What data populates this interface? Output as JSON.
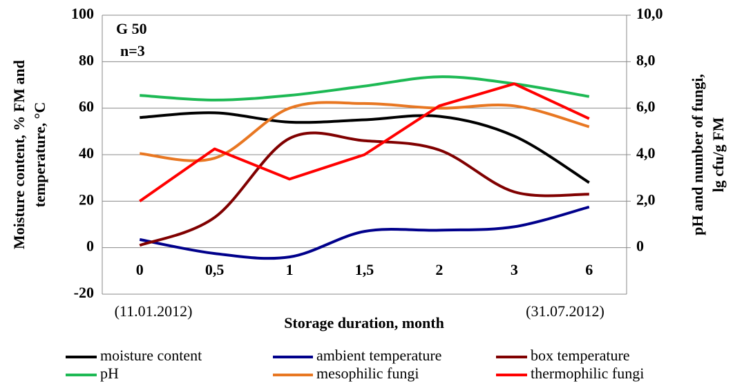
{
  "chart_data": {
    "type": "line",
    "xlabel": "Storage duration, month",
    "ylabel": [
      "Moisture content, % FM and",
      "temperature, °C"
    ],
    "y2label": [
      "pH and number of fungi,",
      "lg cfu/g FM"
    ],
    "annotations": [
      "G 50",
      "n=3",
      "(11.01.2012)",
      "(31.07.2012)"
    ],
    "categories": [
      "0",
      "0,5",
      "1",
      "1,5",
      "2",
      "3",
      "6"
    ],
    "ylim": [
      -20,
      100
    ],
    "yticks": [
      -20,
      0,
      20,
      40,
      60,
      80,
      100
    ],
    "y2lim": [
      -2,
      10
    ],
    "y2ticks": [
      0,
      {
        "value": 2,
        "label": "2,0"
      },
      {
        "value": 4,
        "label": "4,0"
      },
      {
        "value": 6,
        "label": "6,0"
      },
      {
        "value": 8,
        "label": "8,0"
      },
      {
        "value": 10,
        "label": "10,0"
      }
    ],
    "grid": true,
    "series": [
      {
        "name": "moisture content",
        "color": "#000000",
        "smooth": true,
        "values": [
          56,
          58,
          54,
          55,
          56.5,
          48,
          28
        ]
      },
      {
        "name": "ambient temperature",
        "color": "#00008b",
        "smooth": true,
        "values": [
          3.5,
          -2.5,
          -4,
          7,
          7.5,
          9,
          17.5
        ]
      },
      {
        "name": "box temperature",
        "color": "#800000",
        "smooth": true,
        "values": [
          1,
          13,
          47,
          46,
          42,
          24,
          23
        ]
      },
      {
        "name": "pH",
        "color": "#1db954",
        "smooth": true,
        "axis": "y2",
        "values": [
          6.55,
          6.35,
          6.55,
          6.95,
          7.35,
          7.05,
          6.5
        ]
      },
      {
        "name": "mesophilic fungi",
        "color": "#e87722",
        "smooth": true,
        "axis": "y2",
        "values": [
          4.05,
          3.85,
          6.0,
          6.2,
          6.0,
          6.1,
          5.2
        ]
      },
      {
        "name": "thermophilic fungi",
        "color": "#ff0000",
        "smooth": false,
        "axis": "y2",
        "values": [
          2.0,
          4.25,
          2.95,
          4.0,
          6.1,
          7.05,
          5.55
        ]
      }
    ]
  }
}
